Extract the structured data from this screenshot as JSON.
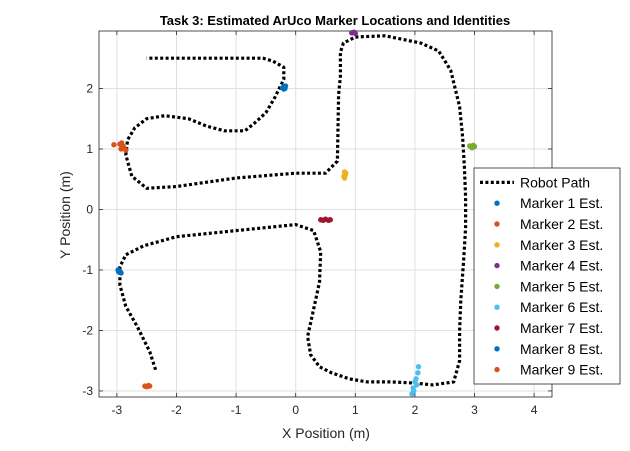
{
  "chart_data": {
    "type": "scatter",
    "title": "Task 3: Estimated ArUco Marker Locations and Identities",
    "xlabel": "X Position (m)",
    "ylabel": "Y Position (m)",
    "xlim": [
      -3.3,
      4.3
    ],
    "ylim": [
      -3.1,
      2.95
    ],
    "xticks": [
      -3,
      -2,
      -1,
      0,
      1,
      2,
      3,
      4
    ],
    "yticks": [
      -3,
      -2,
      -1,
      0,
      1,
      2
    ],
    "grid": true,
    "legend_position": "right",
    "robot_path": {
      "name": "Robot Path",
      "color": "#000000",
      "x": [
        -2.35,
        -2.45,
        -2.65,
        -2.85,
        -2.95,
        -2.95,
        -2.85,
        -2.55,
        -2.0,
        -1.0,
        0.0,
        0.3,
        0.42,
        0.4,
        0.3,
        0.2,
        0.25,
        0.4,
        0.6,
        0.9,
        1.2,
        1.6,
        2.0,
        2.3,
        2.65,
        2.75,
        2.75,
        2.77,
        2.82,
        2.85,
        2.85,
        2.83,
        2.8,
        2.75,
        2.6,
        2.4,
        2.1,
        1.5,
        1.0,
        0.8,
        0.75,
        0.75,
        0.72,
        0.7,
        0.5,
        0.0,
        -1.0,
        -2.0,
        -2.5,
        -2.75,
        -2.85,
        -2.82,
        -2.7,
        -2.5,
        -2.2,
        -1.8,
        -1.5,
        -1.2,
        -0.85,
        -0.7,
        -0.5,
        -0.35,
        -0.2,
        -0.2,
        -0.38,
        -0.55,
        -0.8,
        -1.5,
        -2.0,
        -2.5
      ],
      "y": [
        -2.65,
        -2.35,
        -1.95,
        -1.6,
        -1.25,
        -0.95,
        -0.75,
        -0.6,
        -0.45,
        -0.35,
        -0.25,
        -0.35,
        -0.7,
        -1.2,
        -1.65,
        -2.1,
        -2.4,
        -2.6,
        -2.7,
        -2.8,
        -2.85,
        -2.85,
        -2.87,
        -2.9,
        -2.85,
        -2.5,
        -2.0,
        -1.5,
        -0.8,
        -0.3,
        0.2,
        0.7,
        1.2,
        1.7,
        2.3,
        2.62,
        2.75,
        2.87,
        2.85,
        2.75,
        2.6,
        2.2,
        1.9,
        0.8,
        0.6,
        0.6,
        0.52,
        0.38,
        0.35,
        0.55,
        0.9,
        1.15,
        1.35,
        1.5,
        1.55,
        1.5,
        1.38,
        1.3,
        1.3,
        1.42,
        1.6,
        1.85,
        2.15,
        2.35,
        2.45,
        2.5,
        2.5,
        2.5,
        2.5,
        2.5
      ]
    },
    "series": [
      {
        "name": "Marker 1 Est.",
        "color": "#0072BD",
        "x": [
          -0.2,
          -0.18,
          -0.22,
          -0.17,
          -0.2
        ],
        "y": [
          2.03,
          2.0,
          2.01,
          2.04,
          1.99
        ]
      },
      {
        "name": "Marker 2 Est.",
        "color": "#D95319",
        "x": [
          -3.05,
          -2.9,
          -2.93,
          -2.88,
          -2.95,
          -2.85,
          -2.9,
          -2.92
        ],
        "y": [
          1.07,
          1.05,
          1.0,
          1.02,
          1.08,
          0.98,
          1.03,
          1.1
        ]
      },
      {
        "name": "Marker 3 Est.",
        "color": "#EDB120",
        "x": [
          0.82,
          0.83,
          0.82,
          0.84,
          0.81
        ],
        "y": [
          0.52,
          0.57,
          0.62,
          0.6,
          0.55
        ]
      },
      {
        "name": "Marker 4 Est.",
        "color": "#7E2F8E",
        "x": [
          0.94,
          0.98,
          1.0
        ],
        "y": [
          2.92,
          2.93,
          2.91
        ]
      },
      {
        "name": "Marker 5 Est.",
        "color": "#77AC30",
        "x": [
          2.92,
          2.95,
          2.98,
          3.0,
          2.96
        ],
        "y": [
          1.05,
          1.03,
          1.06,
          1.04,
          1.02
        ]
      },
      {
        "name": "Marker 6 Est.",
        "color": "#4DBEEE",
        "x": [
          1.95,
          1.97,
          2.0,
          2.02,
          2.05,
          2.06,
          1.98,
          2.03
        ],
        "y": [
          -3.05,
          -2.95,
          -2.85,
          -2.8,
          -2.7,
          -2.6,
          -3.0,
          -2.9
        ]
      },
      {
        "name": "Marker 7 Est.",
        "color": "#A2142F",
        "x": [
          0.42,
          0.46,
          0.5,
          0.55,
          0.58
        ],
        "y": [
          -0.17,
          -0.18,
          -0.16,
          -0.18,
          -0.17
        ]
      },
      {
        "name": "Marker 8 Est.",
        "color": "#0072BD",
        "x": [
          -2.98,
          -2.95,
          -2.93,
          -2.97
        ],
        "y": [
          -1.0,
          -1.02,
          -1.05,
          -1.03
        ]
      },
      {
        "name": "Marker 9 Est.",
        "color": "#D95319",
        "x": [
          -2.53,
          -2.5,
          -2.47,
          -2.45
        ],
        "y": [
          -2.92,
          -2.93,
          -2.91,
          -2.92
        ]
      }
    ]
  }
}
